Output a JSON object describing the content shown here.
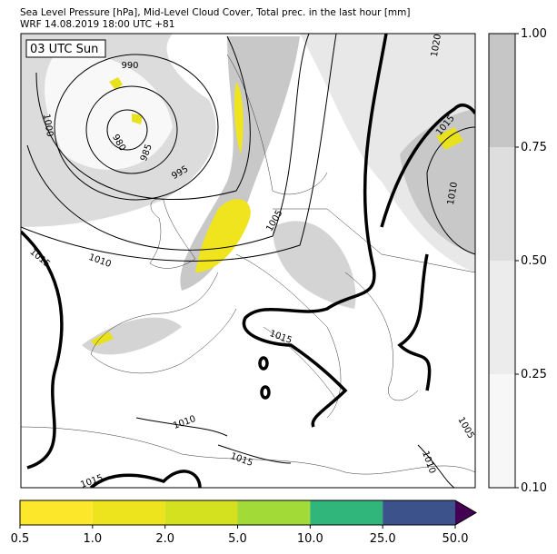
{
  "header": {
    "line1": "Sea Level Pressure [hPa], Mid-Level Cloud Cover, Total prec. in the last hour [mm]",
    "line2": "WRF 14.08.2019 18:00 UTC +81"
  },
  "map": {
    "time_label": "03 UTC Sun",
    "contour_labels": [
      "990",
      "980",
      "985",
      "995",
      "1000",
      "1005",
      "1010",
      "1015",
      "1015",
      "1010",
      "1015",
      "1015",
      "1010",
      "1005",
      "1010",
      "1015",
      "1020"
    ]
  },
  "cloud_colorbar": {
    "ticks": [
      {
        "value": 0.1,
        "label": "0.10"
      },
      {
        "value": 0.25,
        "label": "0.25"
      },
      {
        "value": 0.5,
        "label": "0.50"
      },
      {
        "value": 0.75,
        "label": "0.75"
      },
      {
        "value": 1,
        "label": "1.00"
      }
    ],
    "colors": [
      "#f7f7f7",
      "#ececec",
      "#dedede",
      "#c6c6c6"
    ]
  },
  "precip_colorbar": {
    "ticks": [
      0.5,
      {
        "value": 1,
        "label": "1.0"
      },
      {
        "value": 2,
        "label": "2.0"
      },
      {
        "value": 5,
        "label": "5.0"
      },
      {
        "value": 10,
        "label": "10.0"
      },
      {
        "value": 25,
        "label": "25.0"
      },
      {
        "value": 50,
        "label": "50.0"
      }
    ],
    "colors": [
      "#fde72a",
      "#ede41e",
      "#d3e11f",
      "#a2da37",
      "#30b57b",
      "#3b528b"
    ],
    "extend_color": "#440154"
  }
}
